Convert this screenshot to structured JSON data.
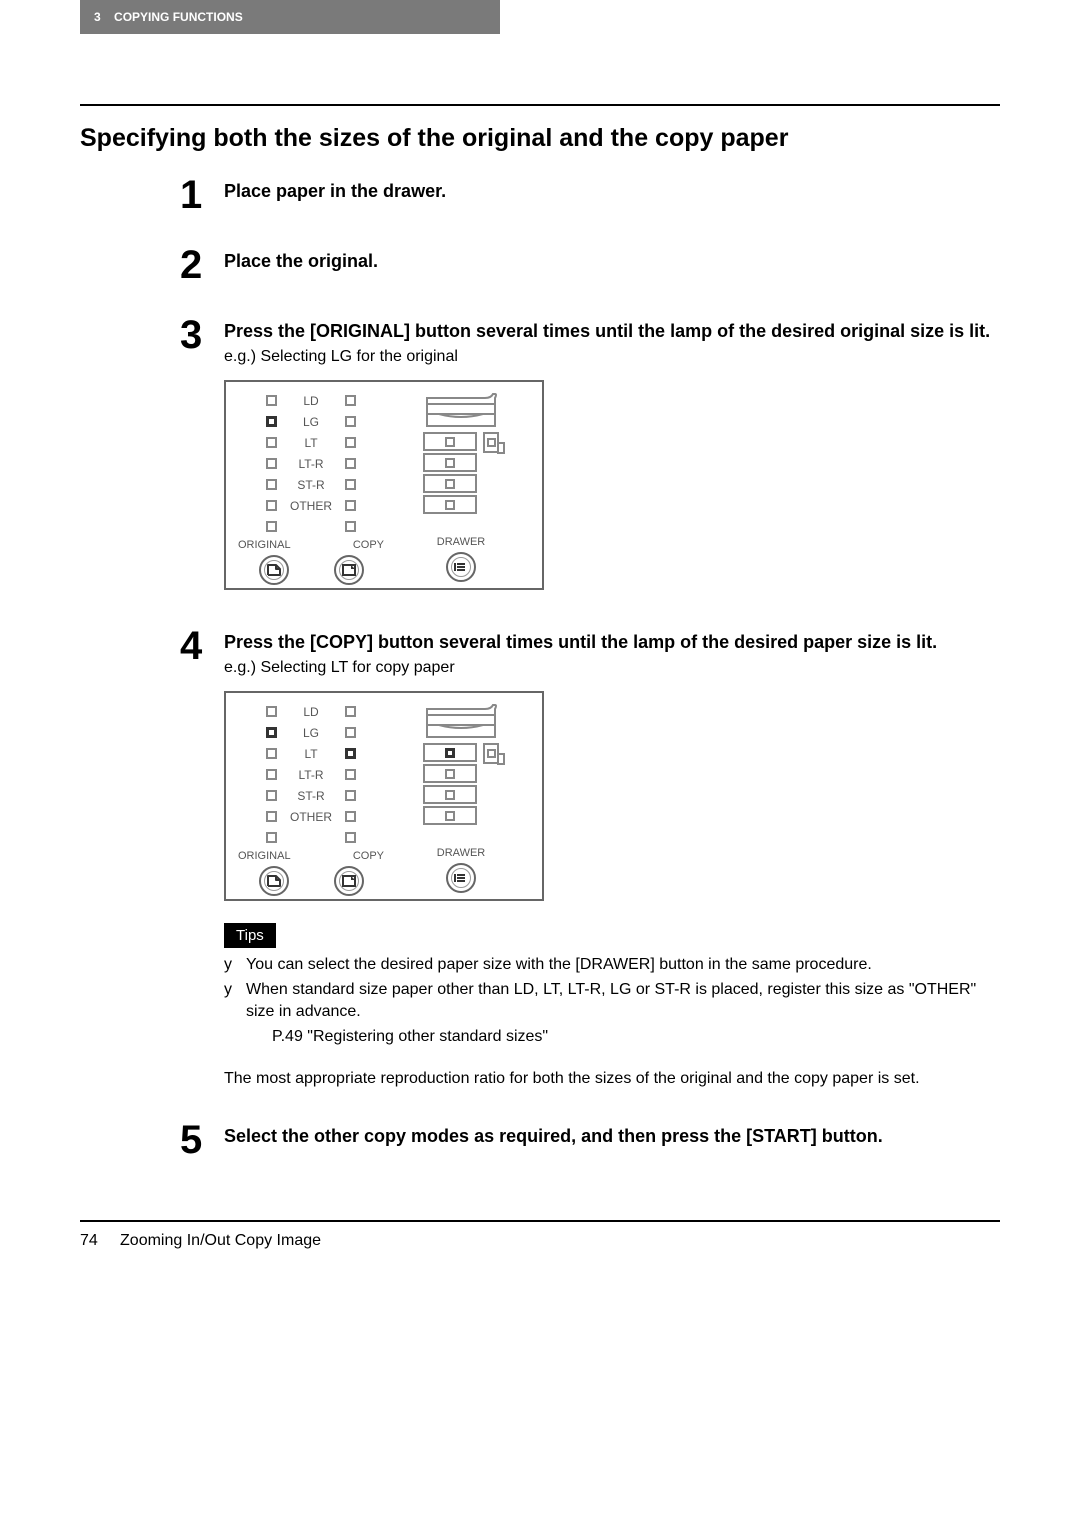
{
  "header": {
    "chapter_num": "3",
    "chapter_title": "COPYING FUNCTIONS"
  },
  "section_title": "Specifying both the sizes of the original and the copy paper",
  "steps": {
    "s1": {
      "num": "1",
      "title": "Place paper in the drawer."
    },
    "s2": {
      "num": "2",
      "title": "Place the original."
    },
    "s3": {
      "num": "3",
      "title": "Press the [ORIGINAL] button several times until the lamp of the desired original size is lit.",
      "sub": "e.g.) Selecting LG for the original"
    },
    "s4": {
      "num": "4",
      "title": "Press the [COPY] button several times until the lamp of the desired paper size is lit.",
      "sub": "e.g.) Selecting LT for copy paper"
    },
    "s5": {
      "num": "5",
      "title": "Select the other copy modes as required, and then press the [START] button."
    }
  },
  "panel": {
    "sizes": [
      "LD",
      "LG",
      "LT",
      "LT-R",
      "ST-R",
      "OTHER"
    ],
    "col_original": "ORIGINAL",
    "col_copy": "COPY",
    "col_drawer": "DRAWER",
    "panel3": {
      "orig_lit_idx": 1,
      "copy_lit_idx": -1,
      "tray_lit_idx": -1
    },
    "panel4": {
      "orig_lit_idx": 1,
      "copy_lit_idx": 2,
      "tray_lit_idx": 0
    }
  },
  "tips": {
    "label": "Tips",
    "items": [
      "You can select the desired paper size with the [DRAWER] button in the same procedure.",
      "When standard size paper other than LD, LT, LT-R, LG or ST-R is placed, register this size as \"OTHER\" size in advance."
    ],
    "ref": "P.49 \"Registering other standard sizes\""
  },
  "post_tips_para": "The most appropriate reproduction ratio for both the sizes of the original and the copy paper is set.",
  "footer": {
    "page_num": "74",
    "page_title": "Zooming In/Out Copy Image"
  }
}
